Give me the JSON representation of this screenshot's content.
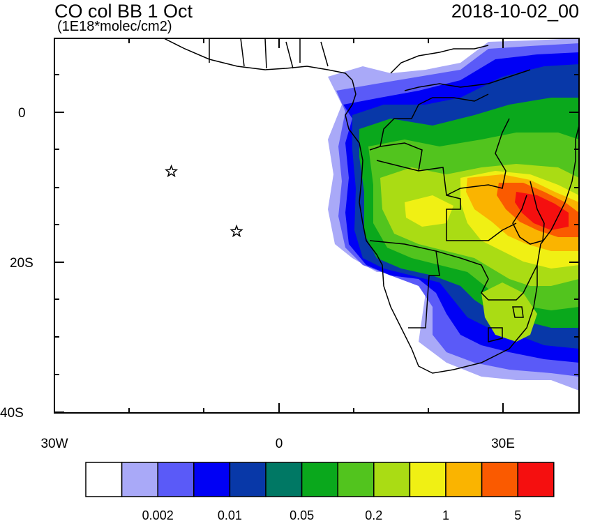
{
  "title": "CO col BB 1 Oct",
  "units": "(1E18*molec/cm2)",
  "datetime": "2018-10-02_00",
  "axes": {
    "y_labels": [
      "0",
      "20S",
      "40S"
    ],
    "x_labels": [
      "30W",
      "0",
      "30E"
    ]
  },
  "colorbar": {
    "colors": [
      "#ffffff",
      "#a9a9f8",
      "#5a5af8",
      "#0000f5",
      "#0838a8",
      "#007864",
      "#0aa81c",
      "#52c41e",
      "#aadc14",
      "#f0f014",
      "#fab400",
      "#fa5a00",
      "#f50f0f"
    ],
    "labels": [
      "0.002",
      "0.01",
      "0.05",
      "0.2",
      "1",
      "5"
    ]
  },
  "markers": [
    {
      "name": "star-marker-1",
      "lon": -14.4,
      "lat": -7.9
    },
    {
      "name": "star-marker-2",
      "lon": -5.7,
      "lat": -15.9
    }
  ]
}
